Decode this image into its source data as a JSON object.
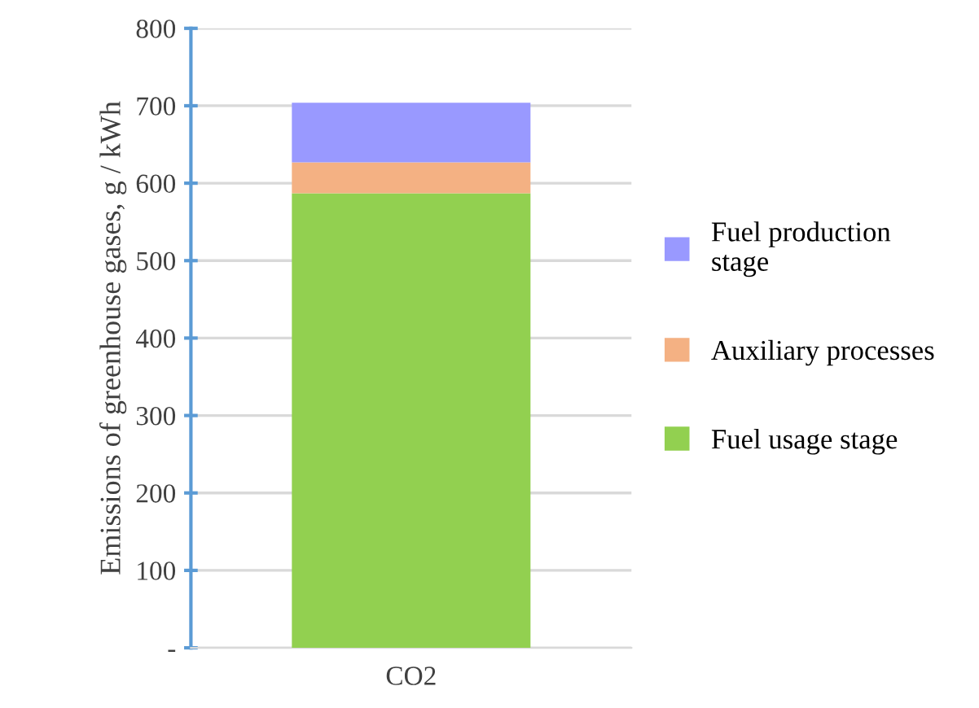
{
  "chart_data": {
    "type": "bar",
    "stacked": true,
    "ylabel": "Emissions of greenhouse gases, g / kWh",
    "categories": [
      "CO2"
    ],
    "series": [
      {
        "name": "Fuel usage stage",
        "color": "#92d050",
        "values": [
          587
        ]
      },
      {
        "name": "Auxiliary processes",
        "color": "#f4b183",
        "values": [
          40
        ]
      },
      {
        "name": "Fuel production stage",
        "color": "#9999ff",
        "values": [
          77
        ]
      }
    ],
    "ylim": [
      0,
      800
    ],
    "yticks": [
      {
        "value": 0,
        "label": "-"
      },
      100,
      200,
      300,
      400,
      500,
      600,
      700,
      800
    ],
    "grid": "y",
    "legend": "right"
  }
}
